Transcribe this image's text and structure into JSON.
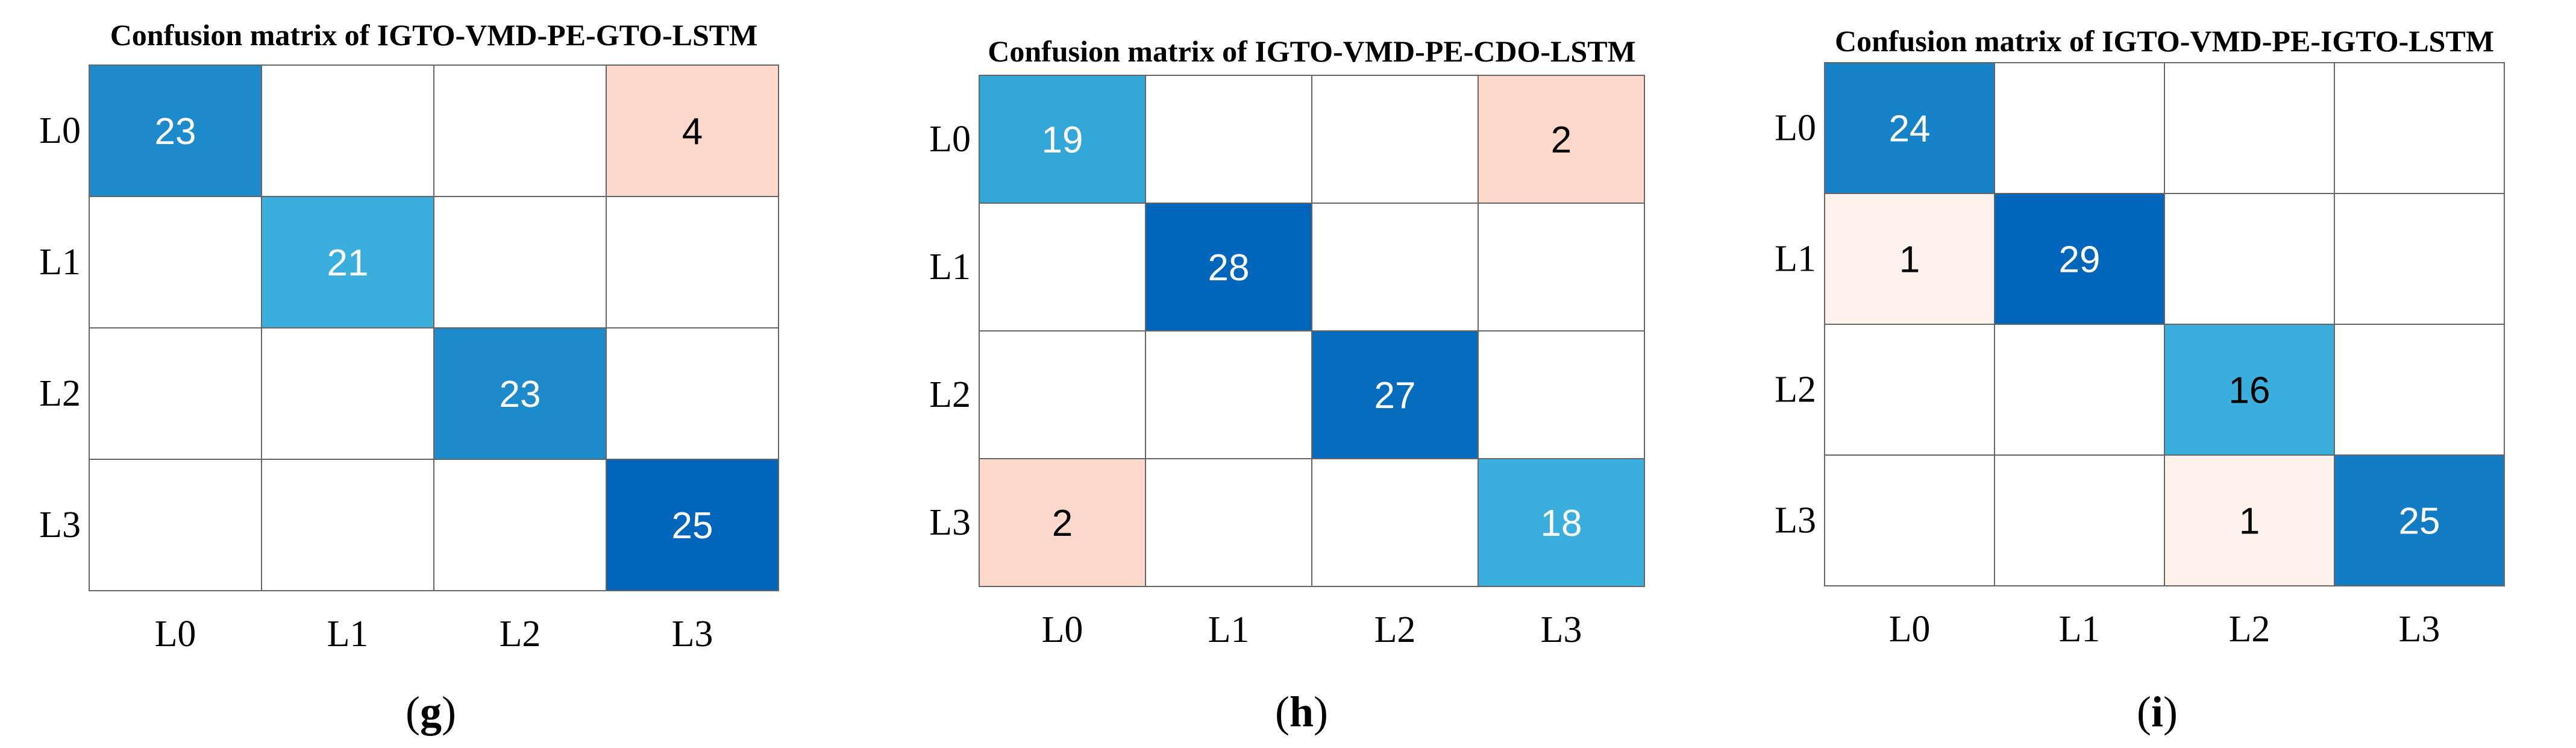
{
  "chart_data": [
    {
      "type": "heatmap",
      "title": "Confusion matrix of IGTO-VMD-PE-GTO-LSTM",
      "rows": [
        "L0",
        "L1",
        "L2",
        "L3"
      ],
      "cols": [
        "L0",
        "L1",
        "L2",
        "L3"
      ],
      "matrix": [
        [
          23,
          0,
          0,
          4
        ],
        [
          0,
          21,
          0,
          0
        ],
        [
          0,
          0,
          23,
          0
        ],
        [
          0,
          0,
          0,
          25
        ]
      ],
      "panel_label": "g"
    },
    {
      "type": "heatmap",
      "title": "Confusion matrix of IGTO-VMD-PE-CDO-LSTM",
      "rows": [
        "L0",
        "L1",
        "L2",
        "L3"
      ],
      "cols": [
        "L0",
        "L1",
        "L2",
        "L3"
      ],
      "matrix": [
        [
          19,
          0,
          0,
          2
        ],
        [
          0,
          28,
          0,
          0
        ],
        [
          0,
          0,
          27,
          0
        ],
        [
          2,
          0,
          0,
          18
        ]
      ],
      "panel_label": "h"
    },
    {
      "type": "heatmap",
      "title": "Confusion matrix of IGTO-VMD-PE-IGTO-LSTM",
      "rows": [
        "L0",
        "L1",
        "L2",
        "L3"
      ],
      "cols": [
        "L0",
        "L1",
        "L2",
        "L3"
      ],
      "matrix": [
        [
          24,
          0,
          0,
          0
        ],
        [
          1,
          29,
          0,
          0
        ],
        [
          0,
          0,
          16,
          0
        ],
        [
          0,
          0,
          1,
          25
        ]
      ],
      "panel_label": "i"
    }
  ],
  "colors": {
    "diag_light": "#3aaedc",
    "diag_dark": "#0066bb",
    "off_light": "#fff1ec",
    "off_dark": "#ffd8cc",
    "grid": "#666666",
    "text_dark": "#000000",
    "text_light": "#ffffff"
  }
}
